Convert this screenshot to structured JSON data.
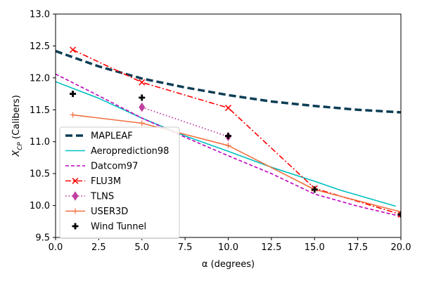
{
  "chart_data": {
    "type": "line",
    "xlabel": "α (degrees)",
    "ylabel": {
      "main": "X",
      "sub": "CP",
      "unit": " (Calibers)"
    },
    "xlim": [
      0,
      20
    ],
    "ylim": [
      9.5,
      13.0
    ],
    "xticks": [
      0.0,
      2.5,
      5.0,
      7.5,
      10.0,
      12.5,
      15.0,
      17.5,
      20.0
    ],
    "xtick_labels": [
      "0.0",
      "2.5",
      "5.0",
      "7.5",
      "10.0",
      "12.5",
      "15.0",
      "17.5",
      "20.0"
    ],
    "yticks": [
      9.5,
      10.0,
      10.5,
      11.0,
      11.5,
      12.0,
      12.5,
      13.0
    ],
    "ytick_labels": [
      "9.5",
      "10.0",
      "10.5",
      "11.0",
      "11.5",
      "12.0",
      "12.5",
      "13.0"
    ],
    "grid": false,
    "legend_position": "lower-left",
    "series": [
      {
        "name": "MAPLEAF",
        "color": "#0b3d55",
        "style": "dashed-thick",
        "marker": "none",
        "x": [
          0,
          2.5,
          5,
          7.5,
          10,
          12.5,
          15,
          17.5,
          20
        ],
        "y": [
          12.42,
          12.18,
          11.99,
          11.85,
          11.73,
          11.63,
          11.56,
          11.5,
          11.46
        ]
      },
      {
        "name": "Aeroprediction98",
        "color": "#00bfbf",
        "style": "solid",
        "marker": "none",
        "x": [
          0,
          2.5,
          5,
          7.5,
          10,
          12.5,
          15,
          16.5,
          19.7
        ],
        "y": [
          11.94,
          11.68,
          11.37,
          11.09,
          10.85,
          10.6,
          10.38,
          10.24,
          9.99
        ]
      },
      {
        "name": "Datcom97",
        "color": "#bf00bf",
        "style": "dashed",
        "marker": "none",
        "x": [
          0,
          2.5,
          5,
          7.5,
          10,
          12.5,
          15,
          17.5,
          20
        ],
        "y": [
          12.06,
          11.72,
          11.37,
          11.07,
          10.78,
          10.5,
          10.18,
          9.99,
          9.83
        ]
      },
      {
        "name": "FLU3M",
        "color": "#ff0000",
        "style": "dashdot",
        "marker": "x",
        "x": [
          1,
          5,
          10,
          15,
          20
        ],
        "y": [
          12.44,
          11.93,
          11.53,
          10.27,
          9.86
        ]
      },
      {
        "name": "TLNS",
        "color": "#c03fa0",
        "style": "dotted",
        "marker": "diamond",
        "x": [
          5,
          10
        ],
        "y": [
          11.54,
          11.08
        ]
      },
      {
        "name": "USER3D",
        "color": "#f07040",
        "style": "solid",
        "marker": "plus",
        "x": [
          1,
          5,
          10,
          15,
          20
        ],
        "y": [
          11.42,
          11.29,
          10.94,
          10.25,
          9.9
        ]
      },
      {
        "name": "Wind Tunnel",
        "color": "#000000",
        "style": "none",
        "marker": "plus-bold",
        "x": [
          1,
          5,
          10,
          15,
          20
        ],
        "y": [
          11.75,
          11.69,
          11.09,
          10.25,
          9.86
        ]
      }
    ]
  }
}
